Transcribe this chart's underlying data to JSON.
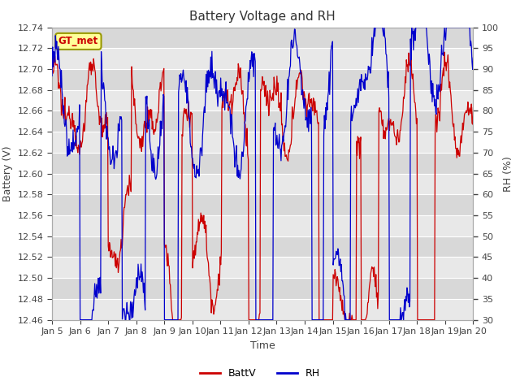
{
  "title": "Battery Voltage and RH",
  "xlabel": "Time",
  "ylabel_left": "Battery (V)",
  "ylabel_right": "RH (%)",
  "ylim_left": [
    12.46,
    12.74
  ],
  "ylim_right": [
    30,
    100
  ],
  "yticks_left": [
    12.46,
    12.48,
    12.5,
    12.52,
    12.54,
    12.56,
    12.58,
    12.6,
    12.62,
    12.64,
    12.66,
    12.68,
    12.7,
    12.72,
    12.74
  ],
  "yticks_right": [
    30,
    35,
    40,
    45,
    50,
    55,
    60,
    65,
    70,
    75,
    80,
    85,
    90,
    95,
    100
  ],
  "xtick_labels": [
    "Jan 5",
    "Jan 6",
    "Jan 7",
    "Jan 8",
    "Jan 9",
    "Jan 10",
    "Jan 11",
    "Jan 12",
    "Jan 13",
    "Jan 14",
    "Jan 15",
    "Jan 16",
    "Jan 17",
    "Jan 18",
    "Jan 19",
    "Jan 20"
  ],
  "annotation_text": "GT_met",
  "annotation_color": "#cc0000",
  "annotation_bg": "#ffff99",
  "annotation_border": "#999900",
  "line_batt_color": "#cc0000",
  "line_rh_color": "#0000cc",
  "legend_batt": "BattV",
  "legend_rh": "RH",
  "plot_bg_light": "#e8e8e8",
  "plot_bg_dark": "#d8d8d8",
  "grid_color": "#ffffff",
  "title_fontsize": 11,
  "axis_label_fontsize": 9,
  "tick_fontsize": 8,
  "stripe_colors": [
    "#e8e8e8",
    "#d8d8d8"
  ]
}
